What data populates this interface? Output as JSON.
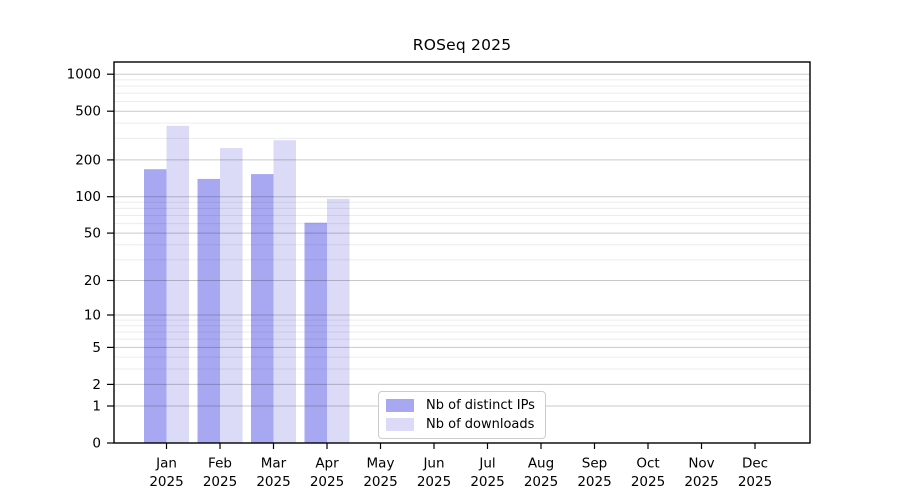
{
  "chart_data": {
    "type": "bar",
    "title": "ROSeq 2025",
    "year_label": "2025",
    "categories": [
      "Jan",
      "Feb",
      "Mar",
      "Apr",
      "May",
      "Jun",
      "Jul",
      "Aug",
      "Sep",
      "Oct",
      "Nov",
      "Dec"
    ],
    "series": [
      {
        "name": "Nb of distinct IPs",
        "color": "#a8a8f2",
        "values": [
          168,
          140,
          153,
          61,
          0,
          0,
          0,
          0,
          0,
          0,
          0,
          0
        ]
      },
      {
        "name": "Nb of downloads",
        "color": "#dbdbf8",
        "values": [
          380,
          250,
          290,
          96,
          0,
          0,
          0,
          0,
          0,
          0,
          0,
          0
        ]
      }
    ],
    "y_scale": "log10(value+1)",
    "y_ticks": [
      0,
      1,
      2,
      5,
      10,
      20,
      50,
      100,
      200,
      500,
      1000
    ],
    "ylim": [
      0,
      1259
    ],
    "xlabel": "",
    "ylabel": "",
    "grid": true,
    "legend_position": "inside-bottom-center-left"
  }
}
